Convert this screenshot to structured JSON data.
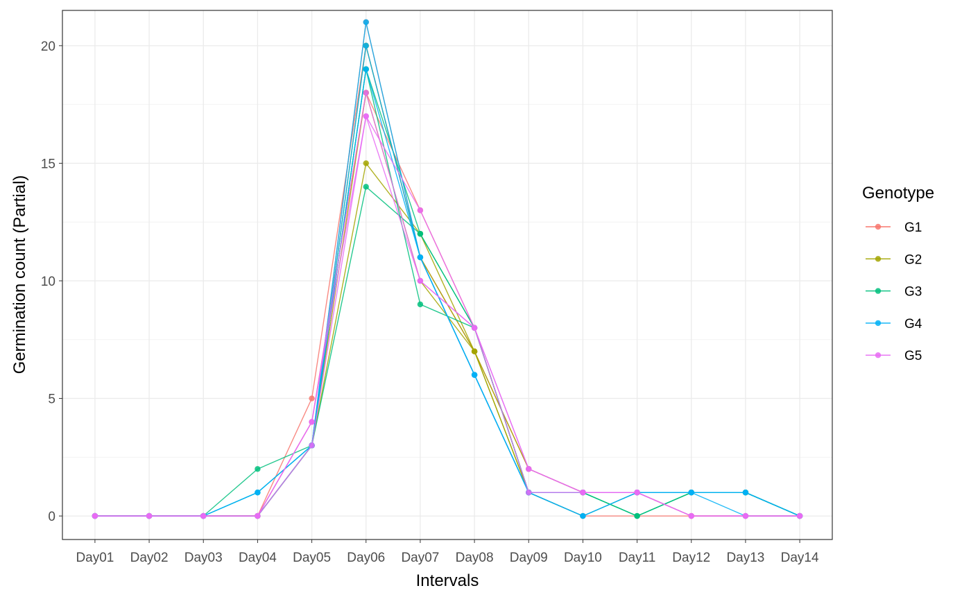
{
  "chart_data": {
    "type": "line",
    "title": "",
    "xlabel": "Intervals",
    "ylabel": "Germination count (Partial)",
    "categories": [
      "Day01",
      "Day02",
      "Day03",
      "Day04",
      "Day05",
      "Day06",
      "Day07",
      "Day08",
      "Day09",
      "Day10",
      "Day11",
      "Day12",
      "Day13",
      "Day14"
    ],
    "ylim": [
      -1,
      21.5
    ],
    "yticks": [
      "0",
      "5",
      "10",
      "15",
      "20"
    ],
    "grid": true,
    "legend": {
      "title": "Genotype",
      "position": "right"
    },
    "series": [
      {
        "name": "G1",
        "color": "#F8766D",
        "lines": [
          [
            0,
            0,
            0,
            0,
            5,
            20,
            11,
            7,
            2,
            1,
            1,
            0,
            0,
            0
          ],
          [
            0,
            0,
            0,
            0,
            4,
            18,
            13,
            8,
            1,
            0,
            0,
            0,
            0,
            0
          ],
          [
            0,
            0,
            0,
            0,
            3,
            21,
            11,
            6,
            1,
            1,
            1,
            1,
            1,
            0
          ]
        ]
      },
      {
        "name": "G2",
        "color": "#A3A500",
        "lines": [
          [
            0,
            0,
            0,
            0,
            3,
            20,
            11,
            7,
            1,
            1,
            1,
            1,
            1,
            0
          ],
          [
            0,
            0,
            0,
            0,
            3,
            15,
            12,
            7,
            2,
            1,
            1,
            1,
            1,
            0
          ],
          [
            0,
            0,
            0,
            0,
            3,
            18,
            10,
            7,
            1,
            0,
            1,
            0,
            0,
            0
          ]
        ]
      },
      {
        "name": "G3",
        "color": "#00BF7D",
        "lines": [
          [
            0,
            0,
            0,
            2,
            3,
            14,
            12,
            8,
            1,
            1,
            0,
            1,
            1,
            0
          ],
          [
            0,
            0,
            0,
            0,
            3,
            19,
            9,
            8,
            1,
            1,
            0,
            1,
            1,
            0
          ],
          [
            0,
            0,
            0,
            1,
            3,
            19,
            12,
            8,
            1,
            1,
            0,
            1,
            1,
            0
          ]
        ]
      },
      {
        "name": "G4",
        "color": "#00B0F6",
        "lines": [
          [
            0,
            0,
            0,
            1,
            3,
            21,
            11,
            6,
            1,
            0,
            1,
            1,
            1,
            0
          ],
          [
            0,
            0,
            0,
            0,
            3,
            19,
            11,
            6,
            1,
            0,
            1,
            1,
            0,
            0
          ],
          [
            0,
            0,
            0,
            1,
            3,
            20,
            11,
            6,
            1,
            1,
            1,
            1,
            1,
            0
          ]
        ]
      },
      {
        "name": "G5",
        "color": "#E76BF3",
        "lines": [
          [
            0,
            0,
            0,
            0,
            4,
            18,
            10,
            8,
            2,
            1,
            1,
            0,
            0,
            0
          ],
          [
            0,
            0,
            0,
            0,
            3,
            17,
            13,
            8,
            1,
            1,
            1,
            0,
            0,
            0
          ],
          [
            0,
            0,
            0,
            0,
            4,
            17,
            10,
            8,
            2,
            1,
            1,
            0,
            0,
            0
          ]
        ]
      }
    ]
  }
}
